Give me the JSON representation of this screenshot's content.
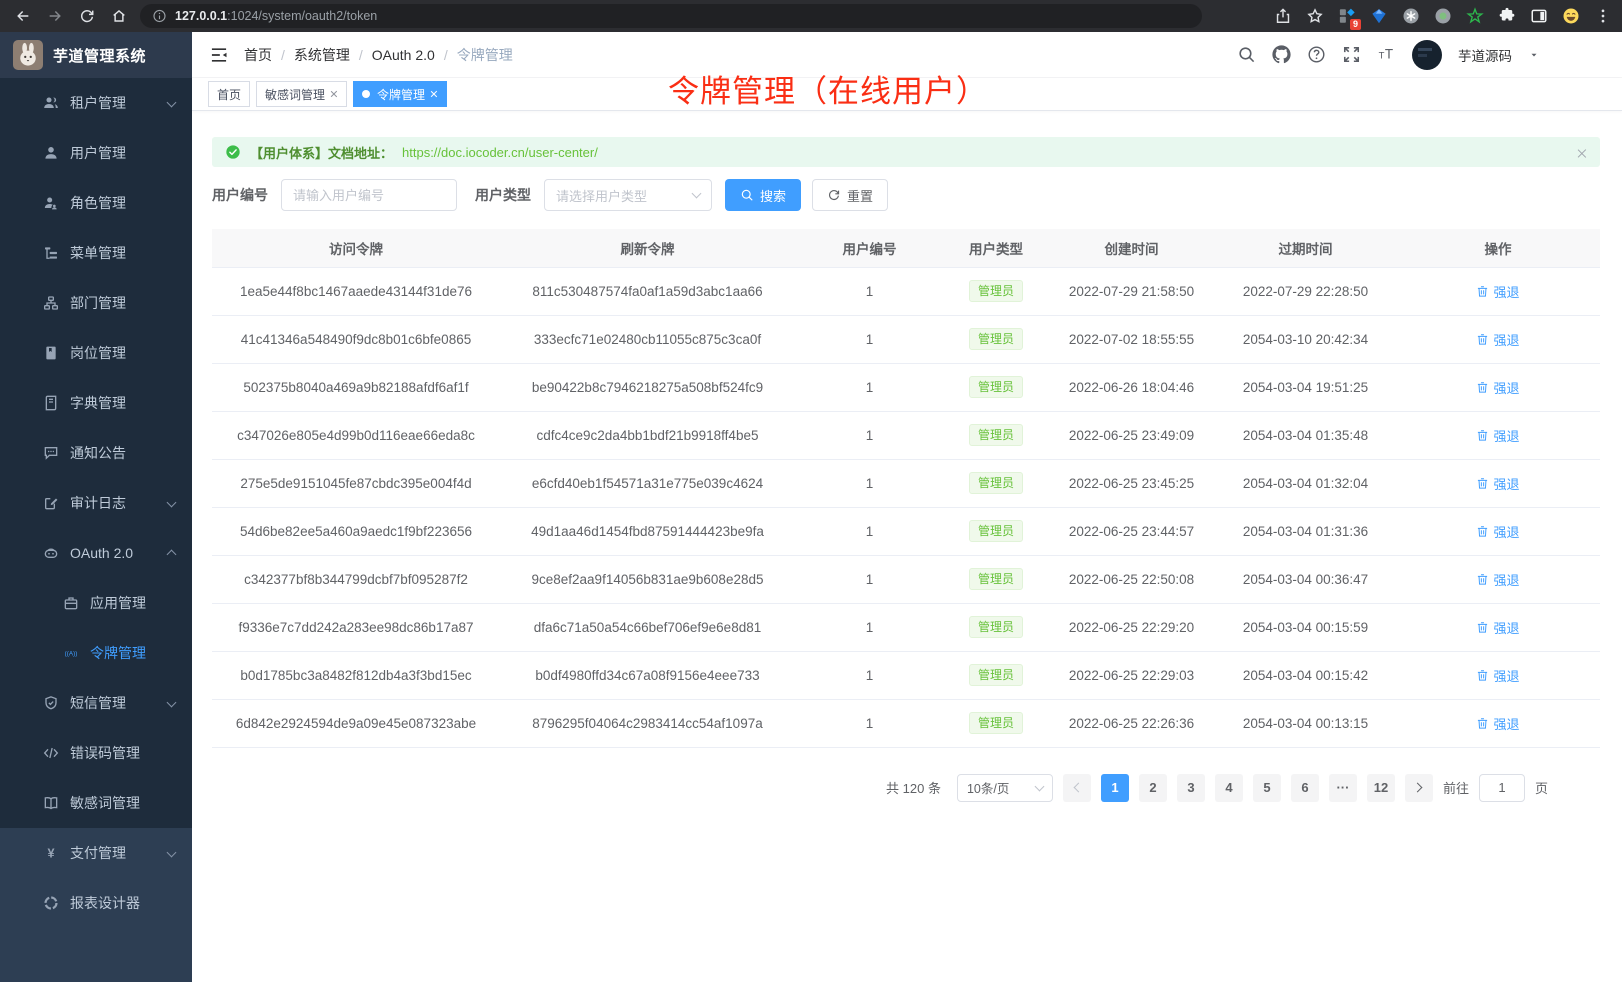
{
  "browser": {
    "url_host": "127.0.0.1",
    "url_rest": ":1024/system/oauth2/token",
    "extension_badge": "9"
  },
  "sidebar": {
    "brand": "芋道管理系统",
    "menu": [
      {
        "label": "租户管理",
        "icon": "tenant-icon",
        "chevron": "down"
      },
      {
        "label": "用户管理",
        "icon": "user-icon"
      },
      {
        "label": "角色管理",
        "icon": "role-icon"
      },
      {
        "label": "菜单管理",
        "icon": "menu-tree-icon"
      },
      {
        "label": "部门管理",
        "icon": "dept-icon"
      },
      {
        "label": "岗位管理",
        "icon": "post-icon"
      },
      {
        "label": "字典管理",
        "icon": "dict-icon"
      },
      {
        "label": "通知公告",
        "icon": "notice-icon"
      },
      {
        "label": "审计日志",
        "icon": "audit-icon",
        "chevron": "down"
      },
      {
        "label": "OAuth 2.0",
        "icon": "oauth-icon",
        "chevron": "up"
      },
      {
        "label": "应用管理",
        "icon": "app-icon",
        "sub": true
      },
      {
        "label": "令牌管理",
        "icon": "token-icon",
        "sub": true,
        "active": true
      },
      {
        "label": "短信管理",
        "icon": "sms-icon",
        "chevron": "down"
      },
      {
        "label": "错误码管理",
        "icon": "errcode-icon"
      },
      {
        "label": "敏感词管理",
        "icon": "sensitive-icon"
      },
      {
        "label": "支付管理",
        "icon": "pay-icon",
        "chevron": "down",
        "section": "light"
      },
      {
        "label": "报表设计器",
        "icon": "report-icon",
        "section": "light"
      }
    ]
  },
  "header": {
    "breadcrumb": [
      "首页",
      "系统管理",
      "OAuth 2.0",
      "令牌管理"
    ],
    "user_name": "芋道源码"
  },
  "overlay_title": "令牌管理（在线用户）",
  "tags": [
    {
      "label": "首页"
    },
    {
      "label": "敏感词管理",
      "closable": true
    },
    {
      "label": "令牌管理",
      "closable": true,
      "active": true
    }
  ],
  "alert": {
    "text": "【用户体系】文档地址：",
    "link": "https://doc.iocoder.cn/user-center/"
  },
  "filters": {
    "user_id_label": "用户编号",
    "user_id_placeholder": "请输入用户编号",
    "user_type_label": "用户类型",
    "user_type_placeholder": "请选择用户类型",
    "search_label": "搜索",
    "reset_label": "重置"
  },
  "table": {
    "columns": [
      "访问令牌",
      "刷新令牌",
      "用户编号",
      "用户类型",
      "创建时间",
      "过期时间",
      "操作"
    ],
    "action_label": "强退",
    "rows": [
      {
        "access_token": "1ea5e44f8bc1467aaede43144f31de76",
        "refresh_token": "811c530487574fa0af1a59d3abc1aa66",
        "user_id": "1",
        "user_type": "管理员",
        "create_time": "2022-07-29 21:58:50",
        "expire_time": "2022-07-29 22:28:50"
      },
      {
        "access_token": "41c41346a548490f9dc8b01c6bfe0865",
        "refresh_token": "333ecfc71e02480cb11055c875c3ca0f",
        "user_id": "1",
        "user_type": "管理员",
        "create_time": "2022-07-02 18:55:55",
        "expire_time": "2054-03-10 20:42:34"
      },
      {
        "access_token": "502375b8040a469a9b82188afdf6af1f",
        "refresh_token": "be90422b8c7946218275a508bf524fc9",
        "user_id": "1",
        "user_type": "管理员",
        "create_time": "2022-06-26 18:04:46",
        "expire_time": "2054-03-04 19:51:25"
      },
      {
        "access_token": "c347026e805e4d99b0d116eae66eda8c",
        "refresh_token": "cdfc4ce9c2da4bb1bdf21b9918ff4be5",
        "user_id": "1",
        "user_type": "管理员",
        "create_time": "2022-06-25 23:49:09",
        "expire_time": "2054-03-04 01:35:48"
      },
      {
        "access_token": "275e5de9151045fe87cbdc395e004f4d",
        "refresh_token": "e6cfd40eb1f54571a31e775e039c4624",
        "user_id": "1",
        "user_type": "管理员",
        "create_time": "2022-06-25 23:45:25",
        "expire_time": "2054-03-04 01:32:04"
      },
      {
        "access_token": "54d6be82ee5a460a9aedc1f9bf223656",
        "refresh_token": "49d1aa46d1454fbd87591444423be9fa",
        "user_id": "1",
        "user_type": "管理员",
        "create_time": "2022-06-25 23:44:57",
        "expire_time": "2054-03-04 01:31:36"
      },
      {
        "access_token": "c342377bf8b344799dcbf7bf095287f2",
        "refresh_token": "9ce8ef2aa9f14056b831ae9b608e28d5",
        "user_id": "1",
        "user_type": "管理员",
        "create_time": "2022-06-25 22:50:08",
        "expire_time": "2054-03-04 00:36:47"
      },
      {
        "access_token": "f9336e7c7dd242a283ee98dc86b17a87",
        "refresh_token": "dfa6c71a50a54c66bef706ef9e6e8d81",
        "user_id": "1",
        "user_type": "管理员",
        "create_time": "2022-06-25 22:29:20",
        "expire_time": "2054-03-04 00:15:59"
      },
      {
        "access_token": "b0d1785bc3a8482f812db4a3f3bd15ec",
        "refresh_token": "b0df4980ffd34c67a08f9156e4eee733",
        "user_id": "1",
        "user_type": "管理员",
        "create_time": "2022-06-25 22:29:03",
        "expire_time": "2054-03-04 00:15:42"
      },
      {
        "access_token": "6d842e2924594de9a09e45e087323abe",
        "refresh_token": "8796295f04064c2983414cc54af1097a",
        "user_id": "1",
        "user_type": "管理员",
        "create_time": "2022-06-25 22:26:36",
        "expire_time": "2054-03-04 00:13:15"
      }
    ]
  },
  "pagination": {
    "total_text": "共 120 条",
    "page_size": "10条/页",
    "pages": [
      {
        "label": "1",
        "active": true
      },
      {
        "label": "2"
      },
      {
        "label": "3"
      },
      {
        "label": "4"
      },
      {
        "label": "5"
      },
      {
        "label": "6"
      },
      {
        "label": "···",
        "ellipsis": true
      },
      {
        "label": "12"
      }
    ],
    "goto_label": "前往",
    "goto_value": "1",
    "goto_suffix": "页"
  },
  "colors": {
    "accent_blue": "#409eff",
    "success_green": "#67c23a",
    "overlay_red": "#fa2e14",
    "sidebar_dark": "#1e2c3c",
    "sidebar_light": "#2d3e53"
  }
}
